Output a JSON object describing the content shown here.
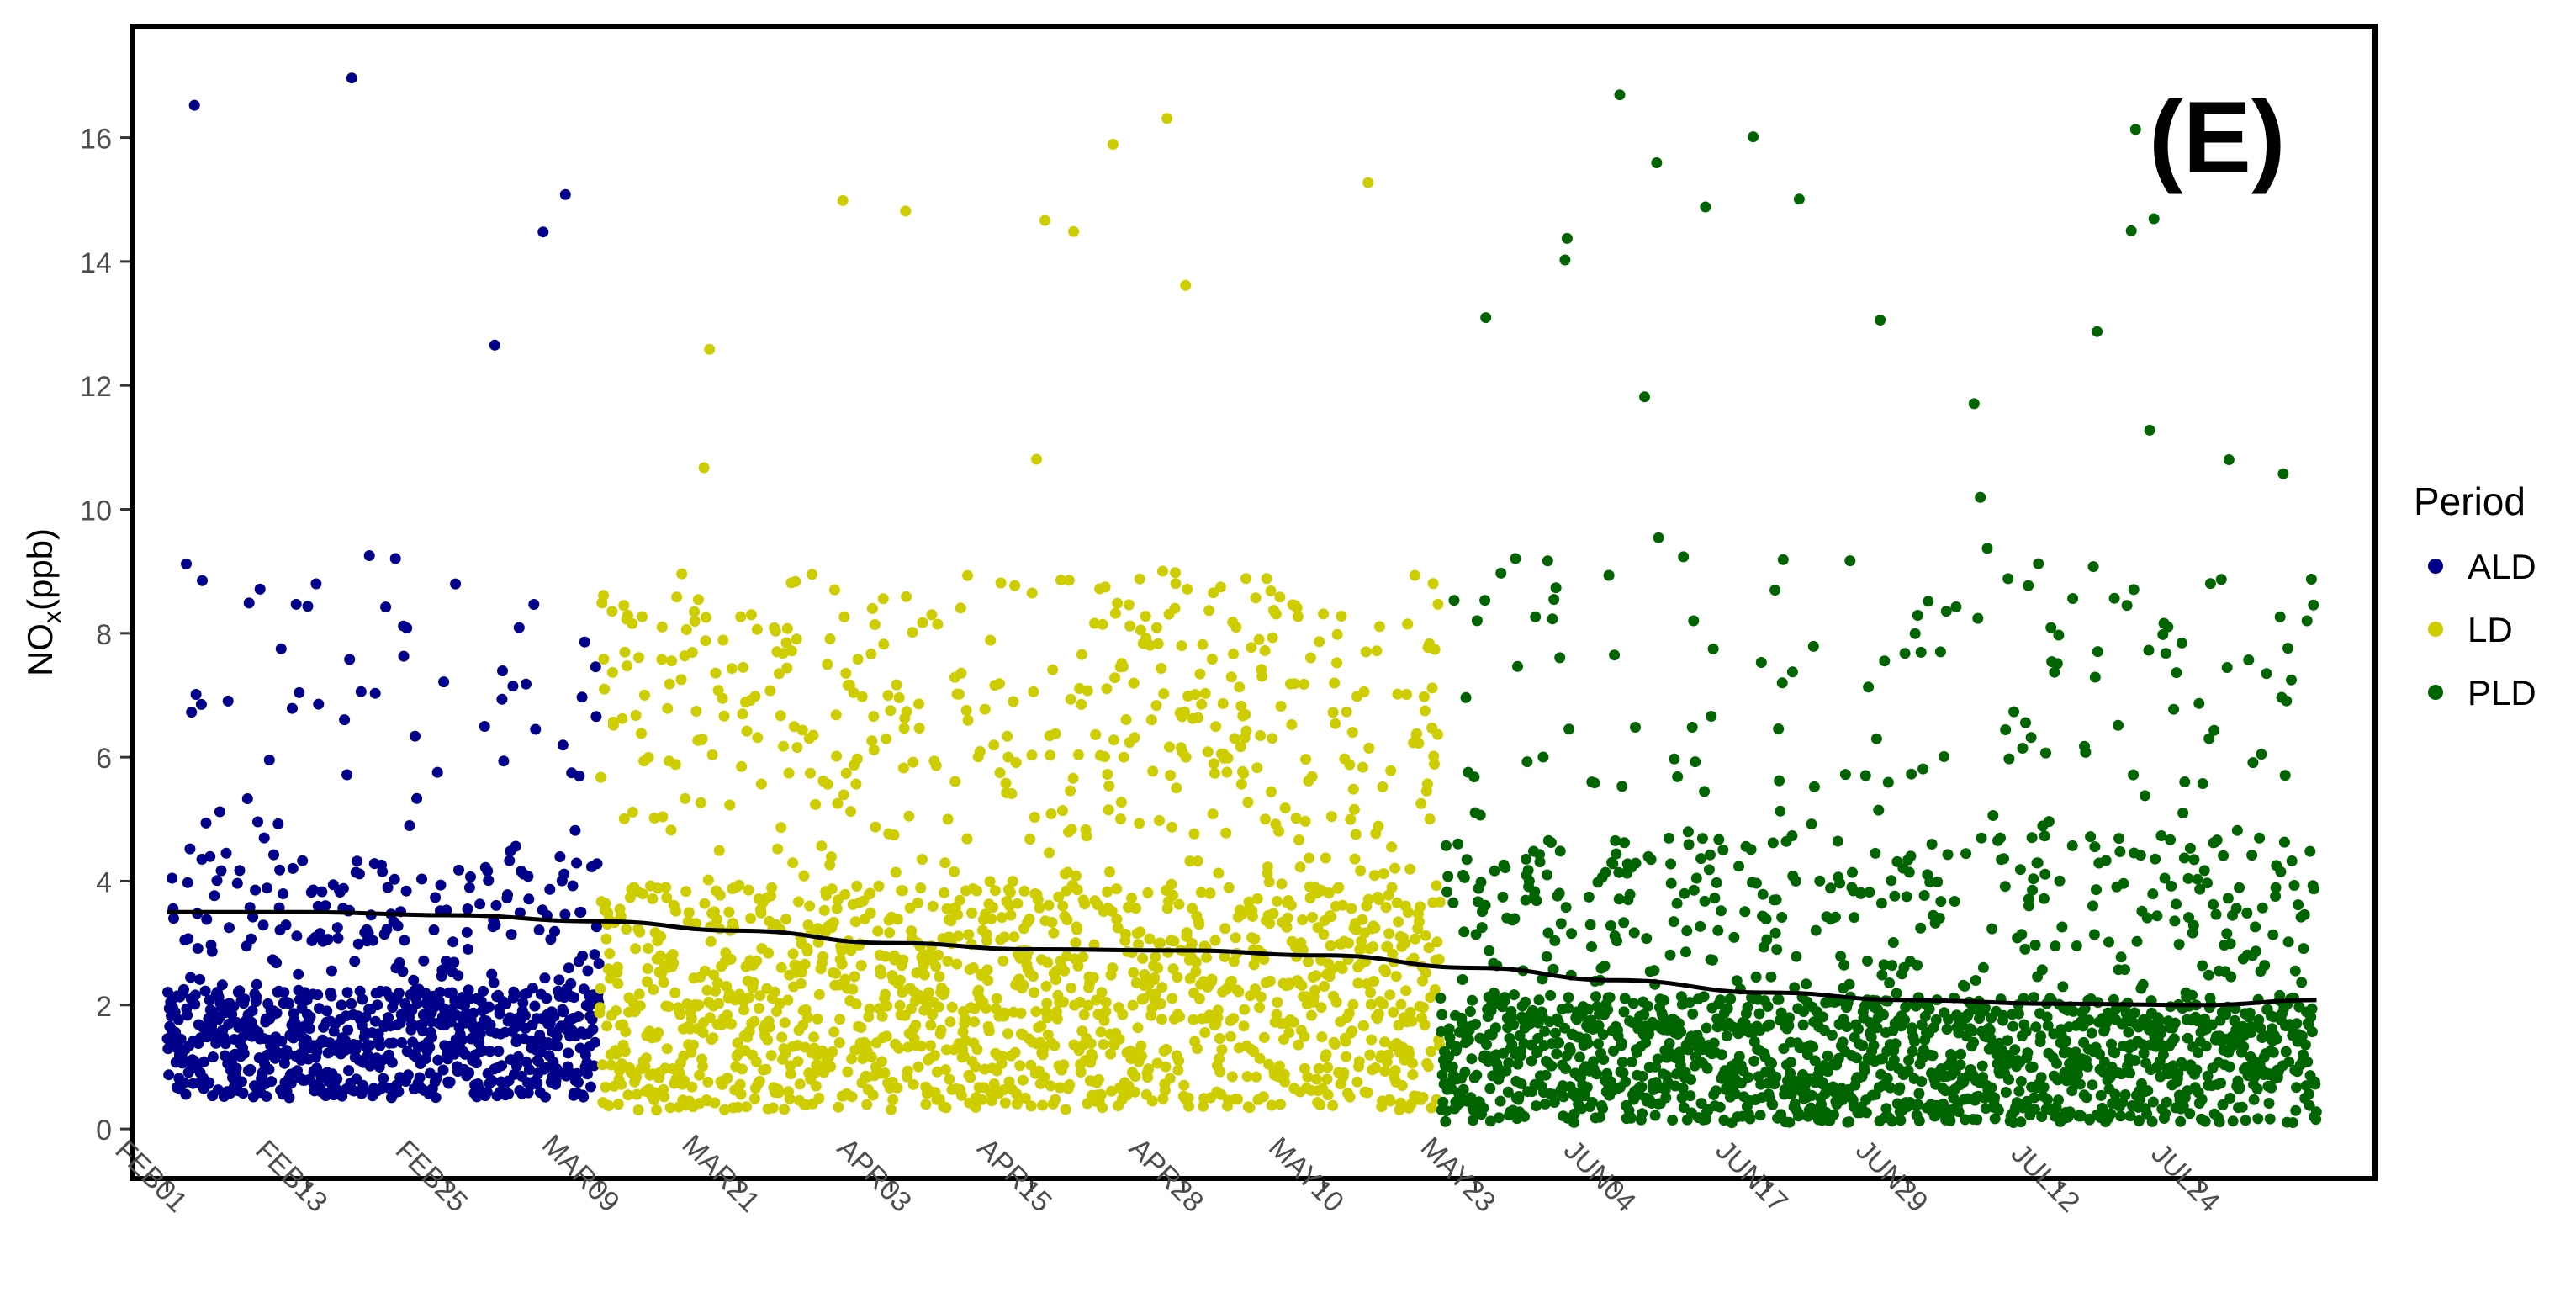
{
  "chart_data": {
    "type": "scatter",
    "panel_label": "(E)",
    "ylabel_main": "NO",
    "ylabel_sub": "x",
    "ylabel_suffix": "(ppb)",
    "xlabel": "",
    "ylim": [
      -0.8,
      17.8
    ],
    "xlim": [
      "2020-01-29",
      "2020-08-08"
    ],
    "x_ticks": [
      {
        "date": "2020-02-01",
        "label": "FEB01"
      },
      {
        "date": "2020-02-13",
        "label": "FEB13"
      },
      {
        "date": "2020-02-25",
        "label": "FEB25"
      },
      {
        "date": "2020-03-09",
        "label": "MAR09"
      },
      {
        "date": "2020-03-21",
        "label": "MAR21"
      },
      {
        "date": "2020-04-03",
        "label": "APR03"
      },
      {
        "date": "2020-04-15",
        "label": "APR15"
      },
      {
        "date": "2020-04-28",
        "label": "APR28"
      },
      {
        "date": "2020-05-10",
        "label": "MAY10"
      },
      {
        "date": "2020-05-23",
        "label": "MAY23"
      },
      {
        "date": "2020-06-04",
        "label": "JUN04"
      },
      {
        "date": "2020-06-17",
        "label": "JUN17"
      },
      {
        "date": "2020-06-29",
        "label": "JUN29"
      },
      {
        "date": "2020-07-12",
        "label": "JUL12"
      },
      {
        "date": "2020-07-24",
        "label": "JUL24"
      }
    ],
    "y_ticks": [
      0,
      2,
      4,
      6,
      8,
      10,
      12,
      14,
      16
    ],
    "legend": {
      "title": "Period",
      "placement": "right",
      "entries": [
        {
          "name": "ALD",
          "color": "#00008B"
        },
        {
          "name": "LD",
          "color": "#CDCD00"
        },
        {
          "name": "PLD",
          "color": "#006400"
        }
      ]
    },
    "series": [
      {
        "name": "ALD",
        "color": "#00008B",
        "start": "2020-02-01",
        "end": "2020-03-09",
        "typical_range": [
          0.5,
          3.0
        ],
        "max": 17.0
      },
      {
        "name": "LD",
        "color": "#CDCD00",
        "start": "2020-03-09",
        "end": "2020-05-20",
        "typical_range": [
          0.3,
          5.5
        ],
        "max": 16.4
      },
      {
        "name": "PLD",
        "color": "#006400",
        "start": "2020-05-20",
        "end": "2020-08-03",
        "typical_range": [
          0.1,
          3.0
        ],
        "max": 16.8
      }
    ],
    "trend_line": {
      "color": "#000000",
      "points": [
        {
          "x": "2020-02-01",
          "y": 3.5
        },
        {
          "x": "2020-02-13",
          "y": 3.5
        },
        {
          "x": "2020-02-25",
          "y": 3.45
        },
        {
          "x": "2020-03-09",
          "y": 3.35
        },
        {
          "x": "2020-03-21",
          "y": 3.2
        },
        {
          "x": "2020-04-03",
          "y": 3.0
        },
        {
          "x": "2020-04-15",
          "y": 2.9
        },
        {
          "x": "2020-04-28",
          "y": 2.88
        },
        {
          "x": "2020-05-10",
          "y": 2.8
        },
        {
          "x": "2020-05-23",
          "y": 2.6
        },
        {
          "x": "2020-06-04",
          "y": 2.4
        },
        {
          "x": "2020-06-17",
          "y": 2.2
        },
        {
          "x": "2020-06-29",
          "y": 2.08
        },
        {
          "x": "2020-07-12",
          "y": 2.02
        },
        {
          "x": "2020-07-24",
          "y": 2.0
        },
        {
          "x": "2020-08-03",
          "y": 2.08
        }
      ]
    },
    "grid": false
  }
}
